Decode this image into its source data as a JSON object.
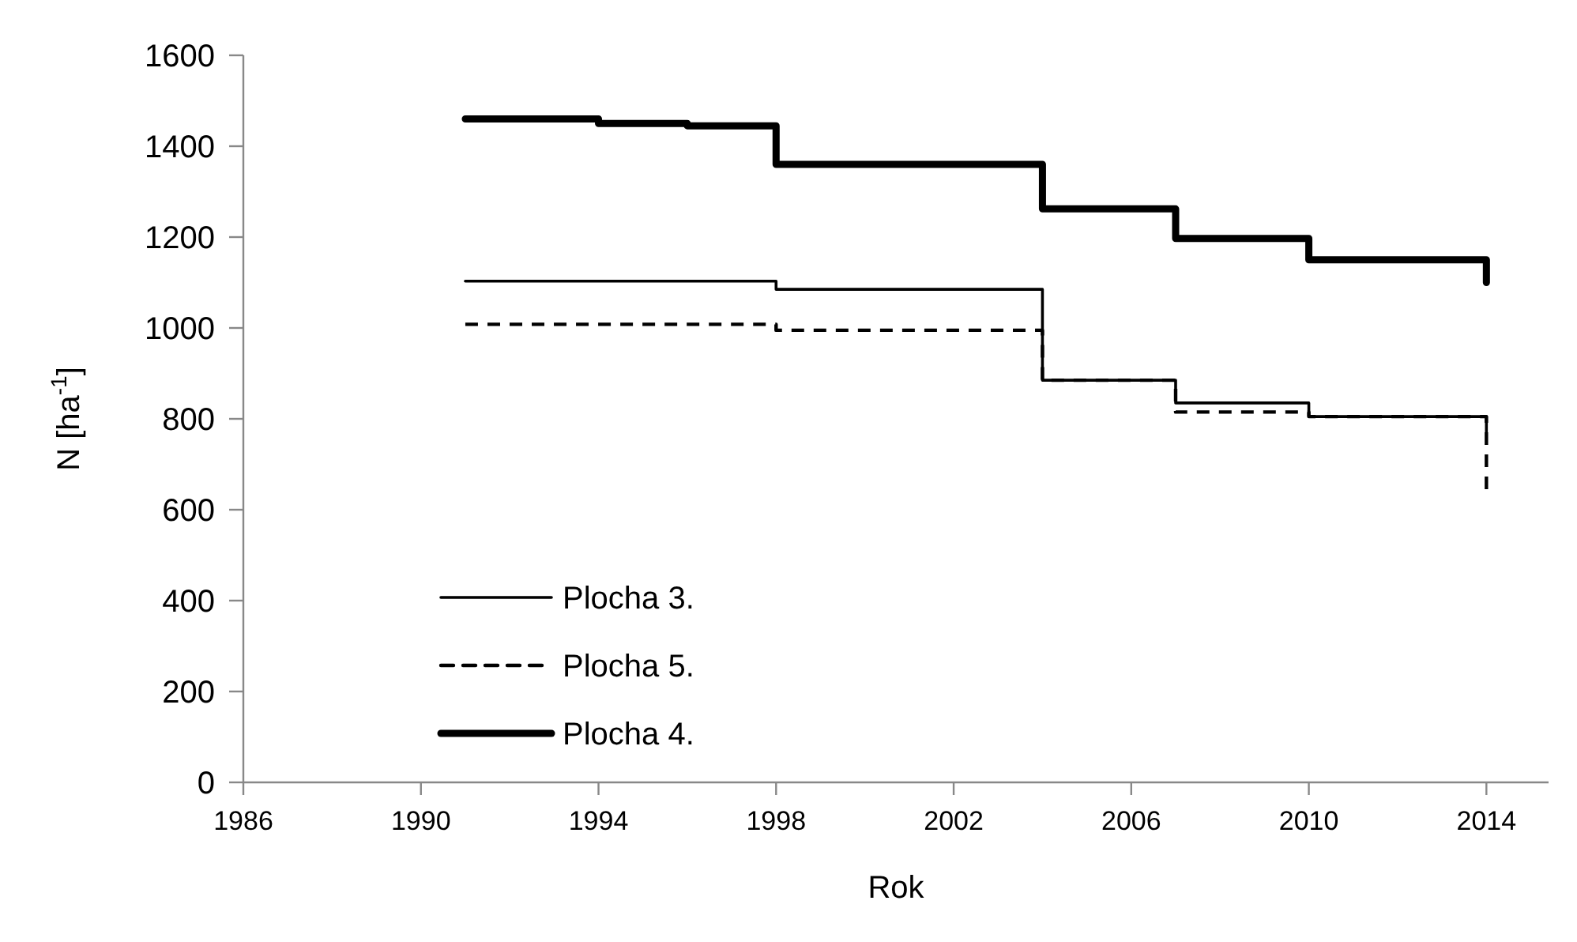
{
  "chart_data": {
    "type": "step",
    "xlabel": "Rok",
    "ylabel": "N [ha$^{-1}$]",
    "xlim": [
      1986,
      2015.4
    ],
    "xticks": [
      1986,
      1990,
      1994,
      1998,
      2002,
      2006,
      2010,
      2014
    ],
    "ylim": [
      0,
      1600
    ],
    "yticks": [
      0,
      200,
      400,
      600,
      800,
      1000,
      1200,
      1400,
      1600
    ],
    "grid": false,
    "legend": "bottom left",
    "marker": "none",
    "series": [
      {
        "name": "Plocha 3.",
        "color": "#000000",
        "line_style": "solid",
        "x": [
          1991,
          1998,
          2004,
          2007,
          2010,
          2014
        ],
        "values": [
          1103,
          1085,
          885,
          835,
          805,
          770
        ]
      },
      {
        "name": "Plocha 5.",
        "color": "#000000",
        "line_style": "dashed",
        "x": [
          1991,
          1998,
          2004,
          2007,
          2010,
          2014
        ],
        "values": [
          1008,
          995,
          885,
          815,
          805,
          645
        ]
      },
      {
        "name": "Plocha 4.",
        "color": "#000000",
        "line_style": "solid",
        "x": [
          1991,
          1994,
          1996,
          1998,
          2004,
          2007,
          2010,
          2014
        ],
        "values": [
          1460,
          1450,
          1445,
          1360,
          1262,
          1197,
          1150,
          1100
        ]
      }
    ]
  }
}
